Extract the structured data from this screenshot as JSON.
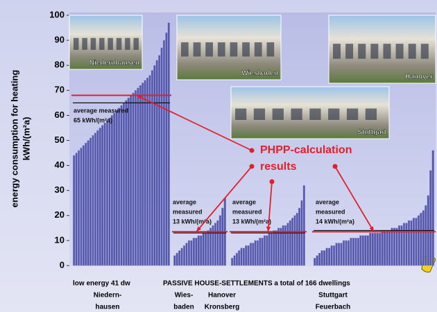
{
  "chart_data": {
    "type": "bar",
    "ylabel": [
      "energy consumption for heating",
      "kWh/(m²a)"
    ],
    "ylim": [
      0,
      100
    ],
    "yticks": [
      0,
      10,
      20,
      30,
      40,
      50,
      60,
      70,
      80,
      90,
      100
    ],
    "color": "#5557a8",
    "measured_color": "#111111",
    "phpp_color": "#e0202a",
    "passive_label": "PASSIVE HOUSE-SETTLEMENTS a total of 166 dwellings",
    "callout": [
      "PHPP-calculation",
      "results"
    ],
    "groups": [
      {
        "label": [
          "low energy 41 dw",
          "Niedern-",
          "hausen"
        ],
        "photo": "Niedernhausen",
        "annotation": [
          "average measured",
          "65 kWh/(m²a)"
        ],
        "measured_avg": 65,
        "phpp": 68,
        "values": [
          44,
          45,
          46,
          47,
          48,
          49,
          50,
          51,
          52,
          53,
          54,
          55,
          56,
          57,
          58,
          59,
          60,
          61,
          62,
          63,
          64,
          65,
          66,
          67,
          68,
          69,
          70,
          71,
          72,
          73,
          74,
          75,
          76,
          78,
          80,
          82,
          84,
          87,
          90,
          93,
          97
        ]
      },
      {
        "label": [
          "Wies-",
          "baden"
        ],
        "photo": "Wiesbaden",
        "annotation": [
          "average",
          "measured",
          "13 kWh/(m²a)"
        ],
        "measured_avg": 13,
        "phpp": 13.5,
        "values": [
          4,
          5,
          6,
          7,
          8,
          9,
          10,
          10,
          11,
          11,
          12,
          12,
          13,
          13,
          14,
          15,
          16,
          17,
          18,
          20,
          23,
          27
        ]
      },
      {
        "label": [
          "Hanover",
          "Kronsberg"
        ],
        "photo": "Hanover",
        "annotation": [
          "average",
          "measured",
          "13 kWh/(m²a)"
        ],
        "measured_avg": 13,
        "phpp": 13.5,
        "values": [
          3,
          4,
          5,
          6,
          7,
          7,
          8,
          8,
          9,
          9,
          10,
          10,
          11,
          11,
          12,
          12,
          13,
          13,
          14,
          14,
          15,
          15,
          16,
          16,
          17,
          18,
          19,
          20,
          21,
          23,
          26,
          32
        ]
      },
      {
        "label": [
          "Stuttgart",
          "Feuerbach"
        ],
        "photo": "Stuttgart",
        "annotation": [
          "average",
          "measured",
          "14 kWh/(m²a)"
        ],
        "measured_avg": 14,
        "phpp": 13.5,
        "values": [
          3,
          4,
          5,
          6,
          6,
          7,
          7,
          8,
          8,
          9,
          9,
          9,
          10,
          10,
          10,
          11,
          11,
          11,
          11,
          12,
          12,
          12,
          12,
          13,
          13,
          13,
          13,
          13,
          14,
          14,
          14,
          14,
          15,
          15,
          15,
          16,
          16,
          17,
          17,
          18,
          18,
          19,
          19,
          20,
          21,
          22,
          24,
          28,
          38,
          46
        ]
      }
    ]
  }
}
